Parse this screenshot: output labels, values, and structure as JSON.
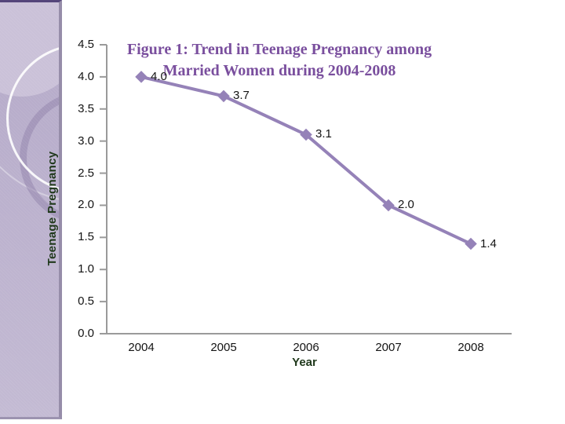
{
  "chart_data": {
    "type": "line",
    "title": "Figure 1: Trend in Teenage Pregnancy among Married Women during 2004-2008",
    "categories": [
      "2004",
      "2005",
      "2006",
      "2007",
      "2008"
    ],
    "series": [
      {
        "name": "Teenage Pregnancy",
        "values": [
          4.0,
          3.7,
          3.1,
          2.0,
          1.4
        ]
      }
    ],
    "data_labels": [
      "4.0",
      "3.7",
      "3.1",
      "2.0",
      "1.4"
    ],
    "xlabel": "Year",
    "ylabel": "Teenage Pregnancy",
    "ylim": [
      0,
      4.5
    ],
    "ytick_step": 0.5,
    "yticks": [
      "4.5",
      "4.0",
      "3.5",
      "3.0",
      "2.5",
      "2.0",
      "1.5",
      "1.0",
      "0.5",
      "0.0"
    ],
    "grid": false,
    "legend": "none",
    "line_color": "#9582b8",
    "marker": "diamond"
  },
  "colors": {
    "title": "#7a4f9e",
    "axis_line": "#9a9a9a",
    "tick_text": "#141414",
    "axis_title_text": "#20391c",
    "sidebar_base": "#b4a9c8",
    "sidebar_border": "#54457a",
    "line": "#9582b8"
  }
}
